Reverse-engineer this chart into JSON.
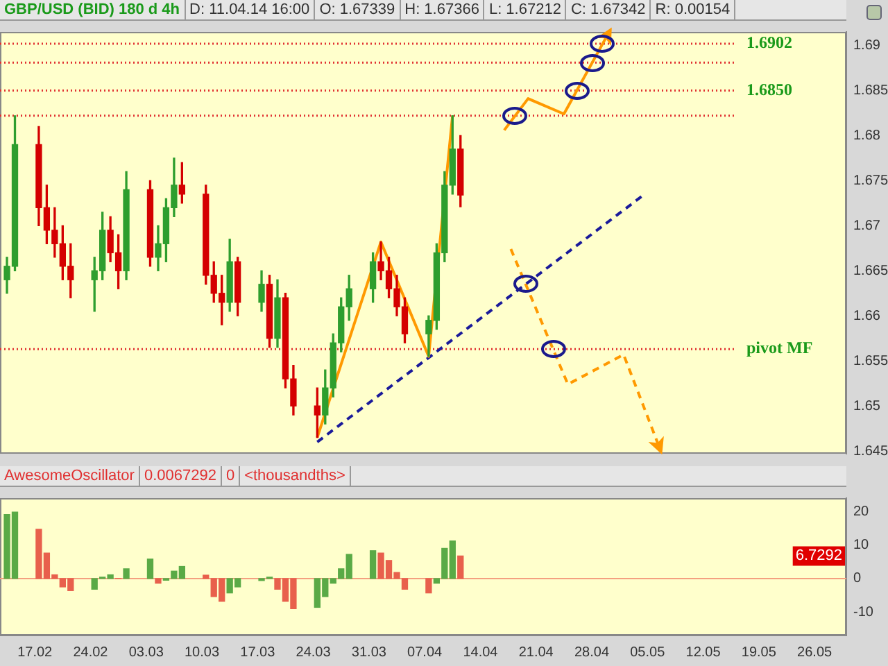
{
  "chart_data": [
    {
      "type": "candlestick",
      "title": "GBP/USD (BID) 180 d 4h",
      "annotations": [
        "D: 11.04.14 16:00",
        "O: 1.67339",
        "H: 1.67366",
        "L: 1.67212",
        "C: 1.67342",
        "R: 0.00154"
      ],
      "x": [
        "--02-13T12:00",
        "--02-14T12:00",
        "--02-17T12:00",
        "--02-18T12:00",
        "--02-19T12:00",
        "--02-20T12:00",
        "--02-21T12:00",
        "--02-24T12:00",
        "--02-25T12:00",
        "--02-26T12:00",
        "--02-27T12:00",
        "--02-28T12:00",
        "--03-03T12:00",
        "--03-04T12:00",
        "--03-05T12:00",
        "--03-06T12:00",
        "--03-07T12:00",
        "--03-10T12:00",
        "--03-11T12:00",
        "--03-12T12:00",
        "--03-13T12:00",
        "--03-14T12:00",
        "--03-17T12:00",
        "--03-18T12:00",
        "--03-19T12:00",
        "--03-20T12:00",
        "--03-21T12:00",
        "--03-24T12:00",
        "--03-25T12:00",
        "--03-26T12:00",
        "--03-27T12:00",
        "--03-28T12:00",
        "--03-31T12:00",
        "--04-01T12:00",
        "--04-02T12:00",
        "--04-03T12:00",
        "--04-04T12:00",
        "--04-07T12:00",
        "--04-08T12:00",
        "--04-09T12:00",
        "--04-10T12:00",
        "--04-11T12:00"
      ],
      "ohlc": [
        [
          1.664,
          1.6665,
          1.6625,
          1.6655
        ],
        [
          1.6655,
          1.6822,
          1.665,
          1.679
        ],
        [
          1.679,
          1.681,
          1.67,
          1.672
        ],
        [
          1.672,
          1.6745,
          1.668,
          1.6695
        ],
        [
          1.6695,
          1.672,
          1.6665,
          1.668
        ],
        [
          1.668,
          1.67,
          1.664,
          1.6655
        ],
        [
          1.6655,
          1.668,
          1.662,
          1.664
        ],
        [
          1.664,
          1.6665,
          1.6605,
          1.665
        ],
        [
          1.665,
          1.6715,
          1.664,
          1.6695
        ],
        [
          1.6695,
          1.671,
          1.666,
          1.667
        ],
        [
          1.667,
          1.669,
          1.663,
          1.665
        ],
        [
          1.665,
          1.676,
          1.664,
          1.674
        ],
        [
          1.674,
          1.675,
          1.6655,
          1.6665
        ],
        [
          1.6665,
          1.67,
          1.665,
          1.668
        ],
        [
          1.668,
          1.673,
          1.666,
          1.672
        ],
        [
          1.672,
          1.6775,
          1.671,
          1.6745
        ],
        [
          1.6745,
          1.677,
          1.6725,
          1.6735
        ],
        [
          1.6735,
          1.6745,
          1.6635,
          1.6645
        ],
        [
          1.6645,
          1.666,
          1.6615,
          1.6625
        ],
        [
          1.6625,
          1.6645,
          1.659,
          1.6615
        ],
        [
          1.6615,
          1.6685,
          1.6605,
          1.666
        ],
        [
          1.666,
          1.6665,
          1.66,
          1.6615
        ],
        [
          1.6615,
          1.665,
          1.6605,
          1.6635
        ],
        [
          1.6635,
          1.6645,
          1.6565,
          1.6575
        ],
        [
          1.6575,
          1.664,
          1.6565,
          1.662
        ],
        [
          1.662,
          1.6625,
          1.652,
          1.653
        ],
        [
          1.653,
          1.6545,
          1.649,
          1.65
        ],
        [
          1.65,
          1.652,
          1.6465,
          1.649
        ],
        [
          1.649,
          1.654,
          1.648,
          1.652
        ],
        [
          1.652,
          1.658,
          1.651,
          1.657
        ],
        [
          1.657,
          1.662,
          1.656,
          1.661
        ],
        [
          1.661,
          1.6645,
          1.6595,
          1.663
        ],
        [
          1.663,
          1.667,
          1.6615,
          1.666
        ],
        [
          1.666,
          1.6682,
          1.664,
          1.665
        ],
        [
          1.665,
          1.6665,
          1.662,
          1.663
        ],
        [
          1.663,
          1.6645,
          1.66,
          1.661
        ],
        [
          1.661,
          1.662,
          1.657,
          1.658
        ],
        [
          1.658,
          1.66,
          1.6555,
          1.6595
        ],
        [
          1.6595,
          1.668,
          1.6585,
          1.667
        ],
        [
          1.667,
          1.676,
          1.666,
          1.6745
        ],
        [
          1.6745,
          1.6822,
          1.6735,
          1.6785
        ],
        [
          1.6785,
          1.68,
          1.6721,
          1.6734
        ]
      ],
      "colors": [
        "#2e9e2e",
        "#2e9e2e",
        "#d40000",
        "#d40000",
        "#d40000",
        "#d40000",
        "#d40000",
        "#2e9e2e",
        "#2e9e2e",
        "#d40000",
        "#d40000",
        "#2e9e2e",
        "#d40000",
        "#2e9e2e",
        "#2e9e2e",
        "#2e9e2e",
        "#d40000",
        "#d40000",
        "#d40000",
        "#d40000",
        "#2e9e2e",
        "#d40000",
        "#2e9e2e",
        "#d40000",
        "#2e9e2e",
        "#d40000",
        "#d40000",
        "#d40000",
        "#2e9e2e",
        "#2e9e2e",
        "#2e9e2e",
        "#2e9e2e",
        "#2e9e2e",
        "#d40000",
        "#d40000",
        "#d40000",
        "#d40000",
        "#2e9e2e",
        "#2e9e2e",
        "#2e9e2e",
        "#2e9e2e",
        "#d40000"
      ],
      "series": [
        {
          "type": "line",
          "color": "#ff9900",
          "line_style": "solid",
          "x": [
            "--03-24T12:00",
            "--04-01T12:00",
            "--04-07T12:00",
            "--04-10T12:00"
          ],
          "values": [
            1.6465,
            1.6682,
            1.6555,
            1.6822
          ]
        },
        {
          "type": "line",
          "color": "#1a1a9a",
          "line_style": "dashed",
          "x": [
            "--03-24T12:00",
            "--05-04T12:00"
          ],
          "values": [
            1.646,
            1.6734
          ]
        },
        {
          "type": "line",
          "color": "#ff9900",
          "line_style": "solid",
          "x": [
            "--04-17T00:00",
            "--04-20T00:00",
            "--04-24T12:00",
            "--04-30T00:00"
          ],
          "values": [
            1.6806,
            1.6841,
            1.6824,
            1.6912
          ]
        },
        {
          "type": "line",
          "color": "#ff9900",
          "line_style": "dashed",
          "x": [
            "--04-17T20:00",
            "--04-25T00:00",
            "--05-02T00:00",
            "--05-06T12:00"
          ],
          "values": [
            1.6674,
            1.6524,
            1.6557,
            1.6454
          ]
        }
      ],
      "ref_lines": [
        {
          "axis": "y",
          "value": 1.6902,
          "label": "1.6902",
          "color": "#e03030",
          "line_style": "dotted"
        },
        {
          "axis": "y",
          "value": 1.6881,
          "color": "#e03030",
          "line_style": "dotted"
        },
        {
          "axis": "y",
          "value": 1.685,
          "label": "1.6850",
          "color": "#e03030",
          "line_style": "dotted"
        },
        {
          "axis": "y",
          "value": 1.6822,
          "color": "#e03030",
          "line_style": "dotted"
        },
        {
          "axis": "y",
          "value": 1.6563,
          "label": "pivot MF",
          "color": "#e03030",
          "line_style": "dotted"
        }
      ],
      "xlim": [
        "--02-12T15:00",
        "--05-30T00:00"
      ],
      "ylim": [
        1.6447,
        1.6915
      ],
      "yticks": [
        1.645,
        1.65,
        1.655,
        1.66,
        1.665,
        1.67,
        1.675,
        1.68,
        1.685,
        1.69
      ],
      "tick_labels": "y"
    },
    {
      "type": "bar",
      "title": "AwesomeOscillator",
      "annotations": [
        "0.0067292",
        "0",
        "<thousandths>",
        {
          "text": "6.7292",
          "y": 6.7292
        }
      ],
      "x": [
        "--02-13T12:00",
        "--02-14T12:00",
        "--02-17T12:00",
        "--02-18T12:00",
        "--02-19T12:00",
        "--02-20T12:00",
        "--02-21T12:00",
        "--02-24T12:00",
        "--02-25T12:00",
        "--02-26T12:00",
        "--02-27T12:00",
        "--02-28T12:00",
        "--03-03T12:00",
        "--03-04T12:00",
        "--03-05T12:00",
        "--03-06T12:00",
        "--03-07T12:00",
        "--03-10T12:00",
        "--03-11T12:00",
        "--03-12T12:00",
        "--03-13T12:00",
        "--03-14T12:00",
        "--03-17T12:00",
        "--03-18T12:00",
        "--03-19T12:00",
        "--03-20T12:00",
        "--03-21T12:00",
        "--03-24T12:00",
        "--03-25T12:00",
        "--03-26T12:00",
        "--03-27T12:00",
        "--03-28T12:00",
        "--03-31T12:00",
        "--04-01T12:00",
        "--04-02T12:00",
        "--04-03T12:00",
        "--04-04T12:00",
        "--04-07T12:00",
        "--04-08T12:00",
        "--04-09T12:00",
        "--04-10T12:00",
        "--04-11T12:00"
      ],
      "values": [
        19.1,
        19.8,
        14.7,
        7.6,
        1.1,
        -2.5,
        -3.6,
        -3.2,
        0.4,
        1.1,
        0,
        2.9,
        5.8,
        -1.4,
        -0.5,
        2.2,
        3.6,
        1,
        -5.4,
        -6.8,
        -4.3,
        -2.5,
        -0.6,
        0.4,
        -3.2,
        -6.8,
        -9,
        -8.6,
        -5.4,
        -1.4,
        2.9,
        7.2,
        8.3,
        7.6,
        5.4,
        1.8,
        -3.2,
        -4.3,
        -1.4,
        9,
        11.2,
        6.7292
      ],
      "colors": [
        "#5aaa46",
        "#5aaa46",
        "#e8604c",
        "#e8604c",
        "#e8604c",
        "#e8604c",
        "#e8604c",
        "#5aaa46",
        "#5aaa46",
        "#5aaa46",
        "#e8604c",
        "#5aaa46",
        "#5aaa46",
        "#e8604c",
        "#5aaa46",
        "#5aaa46",
        "#5aaa46",
        "#e8604c",
        "#e8604c",
        "#e8604c",
        "#5aaa46",
        "#5aaa46",
        "#5aaa46",
        "#5aaa46",
        "#e8604c",
        "#e8604c",
        "#e8604c",
        "#5aaa46",
        "#5aaa46",
        "#5aaa46",
        "#5aaa46",
        "#5aaa46",
        "#5aaa46",
        "#e8604c",
        "#e8604c",
        "#e8604c",
        "#e8604c",
        "#e8604c",
        "#5aaa46",
        "#5aaa46",
        "#5aaa46",
        "#e8604c"
      ],
      "ref_lines": [
        {
          "axis": "y",
          "value": 0,
          "color": "#f4a080",
          "line_style": "solid"
        }
      ],
      "xlim": [
        "--02-12T15:00",
        "--05-30T00:00"
      ],
      "xticks": [
        {
          "value": "--02-17",
          "label": "17.02"
        },
        {
          "value": "--02-24",
          "label": "24.02"
        },
        {
          "value": "--03-03",
          "label": "03.03"
        },
        {
          "value": "--03-10",
          "label": "10.03"
        },
        {
          "value": "--03-17",
          "label": "17.03"
        },
        {
          "value": "--03-24",
          "label": "24.03"
        },
        {
          "value": "--03-31",
          "label": "31.03"
        },
        {
          "value": "--04-07",
          "label": "07.04"
        },
        {
          "value": "--04-14",
          "label": "14.04"
        },
        {
          "value": "--04-21",
          "label": "21.04"
        },
        {
          "value": "--04-28",
          "label": "28.04"
        },
        {
          "value": "--05-05",
          "label": "05.05"
        },
        {
          "value": "--05-12",
          "label": "12.05"
        },
        {
          "value": "--05-19",
          "label": "19.05"
        },
        {
          "value": "--05-26",
          "label": "26.05"
        }
      ],
      "ylim": [
        -17,
        24
      ],
      "yticks": [
        -10,
        0,
        10,
        20
      ]
    }
  ]
}
